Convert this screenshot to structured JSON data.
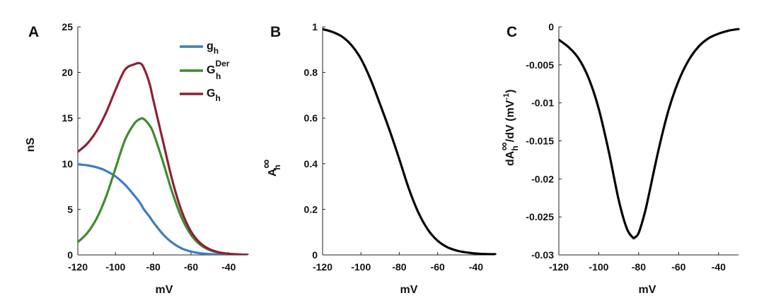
{
  "chart_data": [
    {
      "panel": "A",
      "type": "line",
      "xlabel": "mV",
      "ylabel": "nS",
      "xlim": [
        -120,
        -30
      ],
      "ylim": [
        0,
        25
      ],
      "xticks": [
        -120,
        -100,
        -80,
        -60,
        -40
      ],
      "yticks": [
        0,
        5,
        10,
        15,
        20,
        25
      ],
      "x": [
        -120,
        -115,
        -110,
        -105,
        -100,
        -95,
        -90,
        -87,
        -85,
        -82,
        -80,
        -75,
        -70,
        -65,
        -60,
        -55,
        -50,
        -45,
        -40,
        -35,
        -30
      ],
      "series": [
        {
          "name": "g_h",
          "label_main": "g",
          "label_sub": "h",
          "label_sup": "",
          "color": "#3d7cc2",
          "values": [
            9.93,
            9.82,
            9.6,
            9.22,
            8.6,
            7.7,
            6.5,
            5.7,
            5.0,
            4.2,
            3.6,
            2.3,
            1.35,
            0.72,
            0.37,
            0.18,
            0.09,
            0.04,
            0.02,
            0.01,
            0.0
          ]
        },
        {
          "name": "G_h^Der",
          "label_main": "G",
          "label_sub": "h",
          "label_sup": "Der",
          "color": "#3f8b2f",
          "values": [
            1.4,
            2.4,
            4.0,
            6.4,
            9.5,
            12.6,
            14.4,
            14.9,
            14.9,
            14.2,
            13.4,
            10.3,
            6.9,
            4.1,
            2.2,
            1.1,
            0.52,
            0.24,
            0.11,
            0.05,
            0.02
          ]
        },
        {
          "name": "G_h",
          "label_main": "G",
          "label_sub": "h",
          "label_sup": "",
          "color": "#8e2138",
          "values": [
            11.3,
            12.2,
            13.6,
            15.6,
            18.1,
            20.3,
            20.9,
            21.0,
            20.5,
            18.8,
            17.0,
            12.6,
            8.25,
            4.82,
            2.57,
            1.28,
            0.61,
            0.28,
            0.13,
            0.06,
            0.02
          ]
        }
      ]
    },
    {
      "panel": "B",
      "type": "line",
      "xlabel": "mV",
      "ylabel_main": "A",
      "ylabel_sub": "h",
      "ylabel_sup": "∞",
      "xlim": [
        -120,
        -30
      ],
      "ylim": [
        0,
        1
      ],
      "xticks": [
        -120,
        -100,
        -80,
        -60,
        -40
      ],
      "yticks": [
        0,
        0.2,
        0.4,
        0.6,
        0.8,
        1
      ],
      "x": [
        -120,
        -115,
        -110,
        -105,
        -100,
        -95,
        -90,
        -85,
        -80,
        -75,
        -70,
        -65,
        -60,
        -55,
        -50,
        -45,
        -40,
        -35,
        -30
      ],
      "series": [
        {
          "name": "A_h^inf",
          "color": "#000000",
          "values": [
            0.99,
            0.978,
            0.958,
            0.92,
            0.86,
            0.77,
            0.66,
            0.545,
            0.42,
            0.29,
            0.185,
            0.11,
            0.062,
            0.034,
            0.019,
            0.011,
            0.006,
            0.004,
            0.003
          ]
        }
      ]
    },
    {
      "panel": "C",
      "type": "line",
      "xlabel": "mV",
      "ylabel_pre": "dA",
      "ylabel_sub": "h",
      "ylabel_sup": "∞",
      "ylabel_post": "/dV  (mV",
      "ylabel_unit_sup": "-1",
      "ylabel_end": ")",
      "xlim": [
        -120,
        -30
      ],
      "ylim": [
        -0.03,
        0
      ],
      "xticks": [
        -120,
        -100,
        -80,
        -60,
        -40
      ],
      "yticks": [
        -0.03,
        -0.025,
        -0.02,
        -0.015,
        -0.01,
        -0.005,
        0
      ],
      "x": [
        -120,
        -115,
        -110,
        -105,
        -100,
        -95,
        -90,
        -86,
        -83,
        -82,
        -80,
        -77,
        -75,
        -70,
        -65,
        -60,
        -55,
        -50,
        -45,
        -40,
        -35,
        -30
      ],
      "series": [
        {
          "name": "dA_h^inf/dV",
          "color": "#000000",
          "values": [
            -0.0017,
            -0.0027,
            -0.0042,
            -0.0068,
            -0.0108,
            -0.0164,
            -0.0228,
            -0.0265,
            -0.0277,
            -0.0277,
            -0.0271,
            -0.0245,
            -0.0222,
            -0.0161,
            -0.0109,
            -0.0071,
            -0.0044,
            -0.0026,
            -0.0015,
            -0.0009,
            -0.0005,
            -0.0003
          ]
        }
      ]
    }
  ]
}
